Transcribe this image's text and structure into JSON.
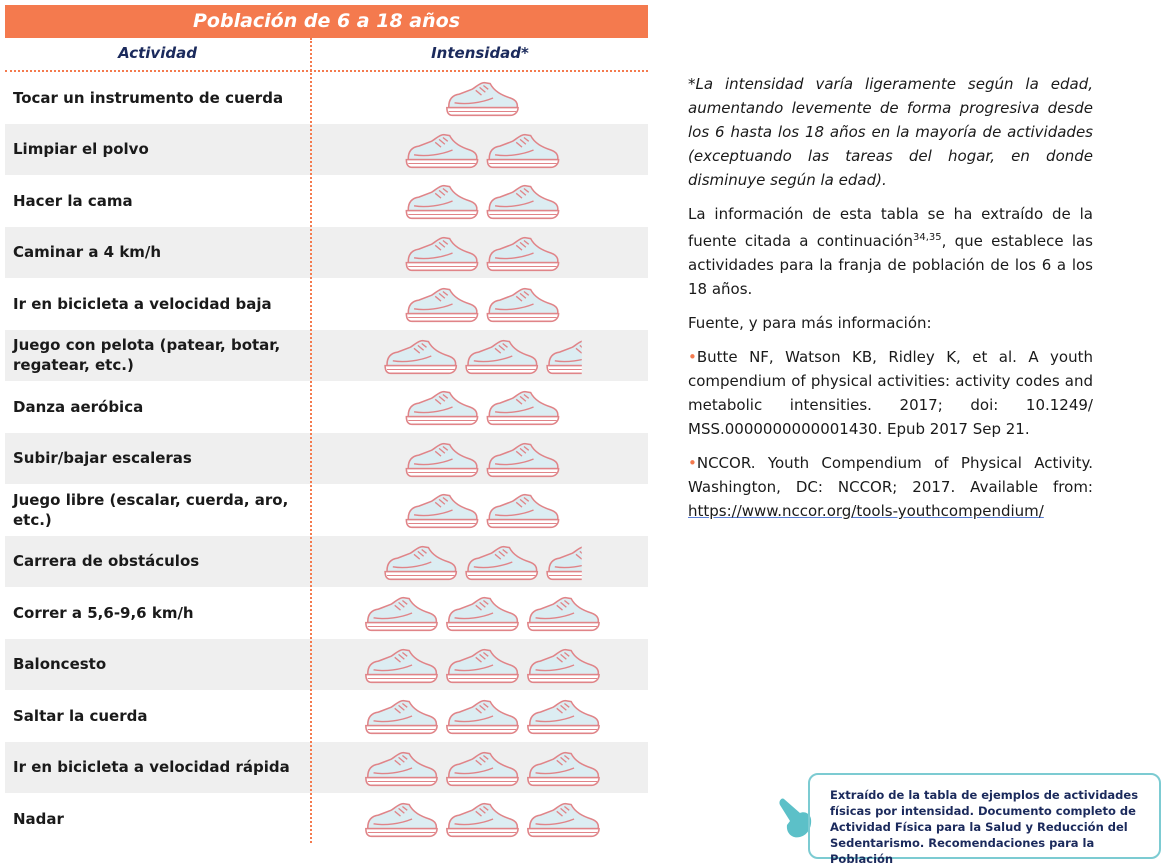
{
  "table": {
    "title": "Población de 6 a 18 años",
    "columns": [
      "Actividad",
      "Intensidad*"
    ],
    "rows": [
      {
        "activity": "Tocar un instrumento de cuerda",
        "intensity": 1
      },
      {
        "activity": "Limpiar el polvo",
        "intensity": 2
      },
      {
        "activity": "Hacer la cama",
        "intensity": 2
      },
      {
        "activity": "Caminar a 4 km/h",
        "intensity": 2
      },
      {
        "activity": "Ir en bicicleta a velocidad baja",
        "intensity": 2
      },
      {
        "activity": "Juego con pelota (patear, botar, regatear, etc.)",
        "intensity": 2.5
      },
      {
        "activity": "Danza aeróbica",
        "intensity": 2
      },
      {
        "activity": "Subir/bajar escaleras",
        "intensity": 2
      },
      {
        "activity": "Juego libre (escalar, cuerda, aro, etc.)",
        "intensity": 2
      },
      {
        "activity": "Carrera de obstáculos",
        "intensity": 2.5
      },
      {
        "activity": "Correr a 5,6-9,6 km/h",
        "intensity": 3
      },
      {
        "activity": "Baloncesto",
        "intensity": 3
      },
      {
        "activity": "Saltar la cuerda",
        "intensity": 3
      },
      {
        "activity": "Ir en bicicleta a velocidad rápida",
        "intensity": 3
      },
      {
        "activity": "Nadar",
        "intensity": 3
      }
    ]
  },
  "notes": {
    "intensity_note": "*La intensidad varía ligeramente según la edad, aumentando levemente de forma progresiva desde los 6 hasta los 18 años en la mayoría de actividades (exceptuando las tareas del hogar, en donde disminuye según la edad).",
    "source_text": "La información de esta tabla se ha extraído de la fuente citada a continuación",
    "source_refs": "34,35",
    "source_text_end": ", que establece las actividades para la franja de población de los 6 a los 18 años.",
    "more_info": "Fuente, y para más información:",
    "references": [
      "Butte NF, Watson KB, Ridley K, et al. A youth compendium of physical activities: activity codes and metabolic intensities. 2017; doi: 10.1249/ MSS.0000000000001430. Epub 2017 Sep 21.",
      "NCCOR. Youth Compendium of Physical Activity. Washington, DC: NCCOR; 2017. Available from:"
    ],
    "link": "https://www.nccor.org/tools-youthcompendium/"
  },
  "callout": "Extraído de la tabla de ejemplos de actividades físicas por intensidad. Documento completo de Actividad Física para la Salud y Reducción del Sedentarismo. Recomendaciones para la Población"
}
